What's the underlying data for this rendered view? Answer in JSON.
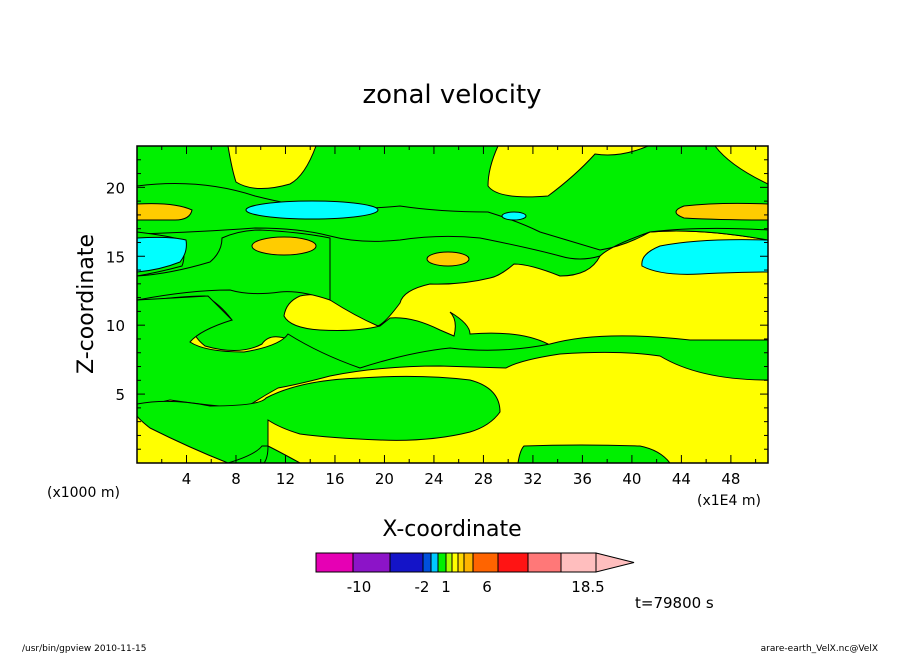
{
  "chart_data": {
    "type": "contour",
    "title": "zonal velocity",
    "xlabel": "X-coordinate",
    "ylabel": "Z-coordinate",
    "x_scale_note": "(x1E4 m)",
    "y_scale_note": "(x1000 m)",
    "xlim": [
      0,
      51
    ],
    "ylim": [
      0,
      23
    ],
    "xticks": [
      "4",
      "8",
      "12",
      "16",
      "20",
      "24",
      "28",
      "32",
      "36",
      "40",
      "44",
      "48"
    ],
    "yticks": [
      "5",
      "10",
      "15",
      "20"
    ],
    "time_label": "t=79800 s",
    "colorbar": {
      "labels": [
        {
          "text": "-10",
          "value": -10
        },
        {
          "text": "-2",
          "value": -2
        },
        {
          "text": "1",
          "value": 1
        },
        {
          "text": "6",
          "value": 6
        },
        {
          "text": "18.5",
          "value": 18.5
        }
      ],
      "bins": [
        {
          "color": "#e600b4"
        },
        {
          "color": "#8c14c8"
        },
        {
          "color": "#1414c8"
        },
        {
          "color": "#0050dc"
        },
        {
          "color": "#00c8ff"
        },
        {
          "color": "#00f000"
        },
        {
          "color": "#aaff00"
        },
        {
          "color": "#ffff00"
        },
        {
          "color": "#ffd700"
        },
        {
          "color": "#ffb400"
        },
        {
          "color": "#ff6400"
        },
        {
          "color": "#ff1414"
        },
        {
          "color": "#ff7878"
        },
        {
          "color": "#ffbebe"
        },
        {
          "color": "#ffbebe"
        }
      ]
    },
    "fill_colors": {
      "background_positive": "#ffff00",
      "negative_weak": "#00f000",
      "negative_moderate": "#00ffff",
      "positive_moderate": "#ffcc00"
    }
  },
  "footer": {
    "left": "/usr/bin/gpview   2010-11-15",
    "right": "arare-earth_VelX.nc@VelX"
  }
}
